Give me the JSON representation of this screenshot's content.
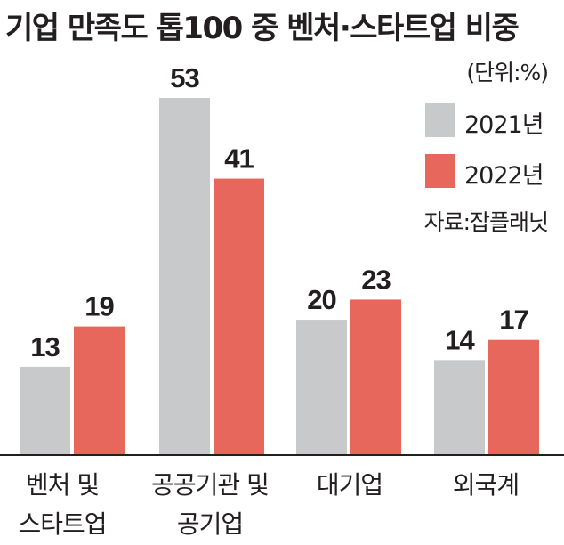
{
  "chart_data": {
    "type": "bar",
    "title": "기업 만족도 톱100 중 벤처·스타트업 비중",
    "unit_note": "(단위:%)",
    "source": "자료:잡플래닛",
    "categories": [
      "벤처 및\n스타트업",
      "공공기관 및\n공기업",
      "대기업",
      "외국계"
    ],
    "series": [
      {
        "name": "2021년",
        "color": "#c8c9ca",
        "values": [
          13,
          53,
          20,
          14
        ]
      },
      {
        "name": "2022년",
        "color": "#e8675c",
        "values": [
          19,
          41,
          23,
          17
        ]
      }
    ],
    "ylim": [
      0,
      55
    ],
    "grid": false,
    "legend_position": "top-right",
    "xlabel": "",
    "ylabel": ""
  }
}
